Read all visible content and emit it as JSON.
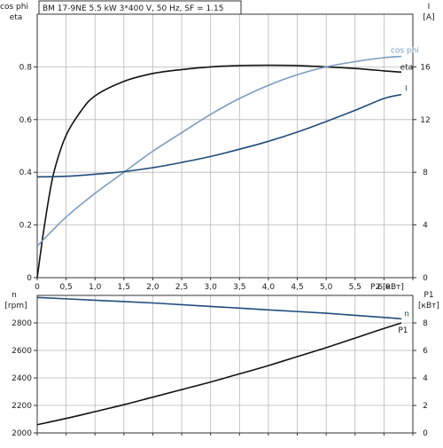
{
  "header": {
    "text": "BM 17-9NE   5.5 kW   3*400 V, 50 Hz, SF = 1.15"
  },
  "colors": {
    "black": "#111111",
    "navy": "#1f4b7a",
    "light_blue": "#7b9cbf",
    "grid": "#b8b8b8",
    "frame": "#333333"
  },
  "chart_data": [
    {
      "type": "line",
      "left_axis_title": [
        "cos phi",
        "eta"
      ],
      "right_axis_title": [
        "I",
        "[A]"
      ],
      "xlabel": "P2 [кВт]",
      "xlim": [
        0,
        6.5
      ],
      "ylim_left": [
        0,
        1.0
      ],
      "ylim_right": [
        0,
        20
      ],
      "x_ticks": [
        "0",
        "0,5",
        "1,0",
        "1,5",
        "2,0",
        "2,5",
        "3,0",
        "3,5",
        "4,0",
        "4,5",
        "5,0",
        "5,5",
        "6,0"
      ],
      "y_left_ticks": [
        "0",
        "0.2",
        "0.4",
        "0.6",
        "0.8"
      ],
      "y_right_ticks": [
        "0",
        "4",
        "8",
        "12",
        "16"
      ],
      "series": [
        {
          "name": "eta",
          "axis": "left",
          "color": "black",
          "x": [
            0,
            0.1,
            0.2,
            0.3,
            0.5,
            0.75,
            1.0,
            1.5,
            2.0,
            2.5,
            3.0,
            3.5,
            4.0,
            4.5,
            5.0,
            5.5,
            6.0,
            6.3
          ],
          "y": [
            0,
            0.16,
            0.3,
            0.41,
            0.54,
            0.63,
            0.69,
            0.745,
            0.775,
            0.79,
            0.8,
            0.805,
            0.806,
            0.805,
            0.8,
            0.794,
            0.785,
            0.78
          ]
        },
        {
          "name": "cos phi",
          "axis": "left",
          "color": "light_blue",
          "x": [
            0,
            0.5,
            1.0,
            1.5,
            2.0,
            2.5,
            3.0,
            3.5,
            4.0,
            4.5,
            5.0,
            5.5,
            6.0,
            6.3
          ],
          "y": [
            0.12,
            0.23,
            0.32,
            0.4,
            0.48,
            0.55,
            0.62,
            0.68,
            0.73,
            0.77,
            0.8,
            0.82,
            0.835,
            0.84
          ]
        },
        {
          "name": "I",
          "axis": "right",
          "color": "navy",
          "x": [
            0,
            0.5,
            1.0,
            1.5,
            2.0,
            2.5,
            3.0,
            3.5,
            4.0,
            4.5,
            5.0,
            5.5,
            6.0,
            6.3
          ],
          "y": [
            7.65,
            7.7,
            7.85,
            8.05,
            8.35,
            8.75,
            9.2,
            9.75,
            10.35,
            11.05,
            11.85,
            12.7,
            13.6,
            13.9
          ]
        }
      ]
    },
    {
      "type": "line",
      "left_axis_title": [
        "n",
        "[rpm]"
      ],
      "right_axis_title": [
        "P1",
        "[кВт]"
      ],
      "xlim": [
        0,
        6.5
      ],
      "ylim_left": [
        2000,
        3000
      ],
      "ylim_right": [
        0,
        10
      ],
      "y_left_ticks": [
        "2000",
        "2200",
        "2400",
        "2600",
        "2800"
      ],
      "y_right_ticks": [
        "0",
        "2",
        "4",
        "6",
        "8"
      ],
      "series": [
        {
          "name": "n",
          "axis": "left",
          "color": "navy",
          "x": [
            0,
            1.0,
            2.0,
            3.0,
            4.0,
            5.0,
            6.0,
            6.3
          ],
          "y": [
            2985,
            2965,
            2945,
            2920,
            2895,
            2870,
            2840,
            2830
          ]
        },
        {
          "name": "P1",
          "axis": "right",
          "color": "black",
          "x": [
            0,
            0.5,
            1.0,
            1.5,
            2.0,
            2.5,
            3.0,
            3.5,
            4.0,
            4.5,
            5.0,
            5.5,
            6.0,
            6.3
          ],
          "y": [
            0.6,
            1.05,
            1.55,
            2.05,
            2.6,
            3.15,
            3.7,
            4.3,
            4.9,
            5.55,
            6.2,
            6.9,
            7.6,
            8.0
          ]
        }
      ]
    }
  ]
}
